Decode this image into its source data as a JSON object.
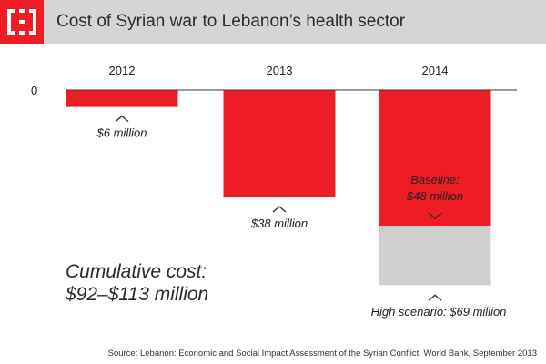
{
  "header": {
    "title": "Cost of Syrian war to Lebanon’s health sector",
    "logo_icon": "brackets-logo-icon"
  },
  "colors": {
    "header_bg": "#d5d5d5",
    "accent": "#ee1c25",
    "baseline_bar": "#ee1c25",
    "high_scenario_bar": "#cfcfcf",
    "axis": "#333333"
  },
  "cumulative_note": {
    "line1": "Cumulative cost:",
    "line2": "$92–$113 million"
  },
  "source": "Source: Lebanon: Economic and Social Impact Assessment of the Syrian Conflict, World Bank, September 2013",
  "chart_data": {
    "type": "bar",
    "orientation": "vertical-downward",
    "title": "Cost of Syrian war to Lebanon’s health sector",
    "unit": "$ million",
    "categories": [
      "2012",
      "2013",
      "2014"
    ],
    "zero_label": "0",
    "ylim": [
      0,
      69
    ],
    "grid": false,
    "series": [
      {
        "values": [
          6,
          38,
          48
        ],
        "color": "#ee1c25",
        "labels": [
          "$6 million",
          "$38 million",
          "Baseline:\n$48 million"
        ]
      },
      {
        "values": [
          null,
          null,
          69
        ],
        "color": "#cfcfcf",
        "labels": [
          null,
          null,
          "High scenario: $69 million"
        ]
      }
    ],
    "annotations": [
      "Cumulative cost: $92–$113 million"
    ]
  }
}
